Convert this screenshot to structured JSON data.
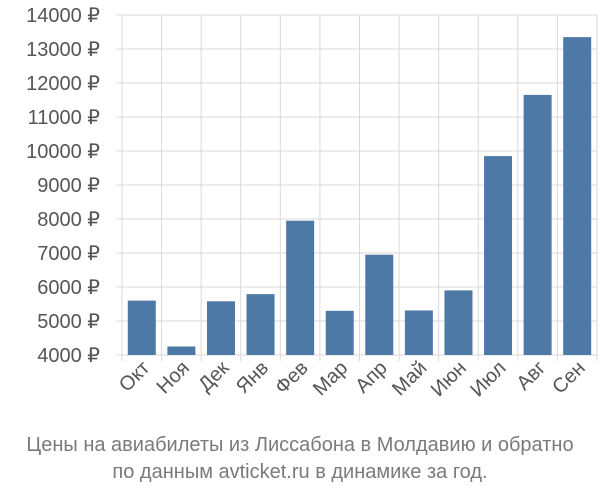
{
  "chart_data": {
    "type": "bar",
    "categories": [
      "Окт",
      "Ноя",
      "Дек",
      "Янв",
      "Фев",
      "Мар",
      "Апр",
      "Май",
      "Июн",
      "Июл",
      "Авг",
      "Сен"
    ],
    "values": [
      5600,
      4250,
      5580,
      5790,
      7950,
      5300,
      6950,
      5310,
      5900,
      9850,
      11650,
      13350
    ],
    "ylim": [
      4000,
      14000
    ],
    "yticks": [
      4000,
      5000,
      6000,
      7000,
      8000,
      9000,
      10000,
      11000,
      12000,
      13000,
      14000
    ],
    "ytick_labels": [
      "4000 ₽",
      "5000 ₽",
      "6000 ₽",
      "7000 ₽",
      "8000 ₽",
      "9000 ₽",
      "10000 ₽",
      "11000 ₽",
      "12000 ₽",
      "13000 ₽",
      "14000 ₽"
    ],
    "grid": true,
    "bar_color": "#4e79a7",
    "title": ""
  },
  "caption": {
    "line1": "Цены на авиабилеты из Лиссабона в Молдавию и обратно",
    "line2": "по данным avticket.ru в динамике за год."
  }
}
